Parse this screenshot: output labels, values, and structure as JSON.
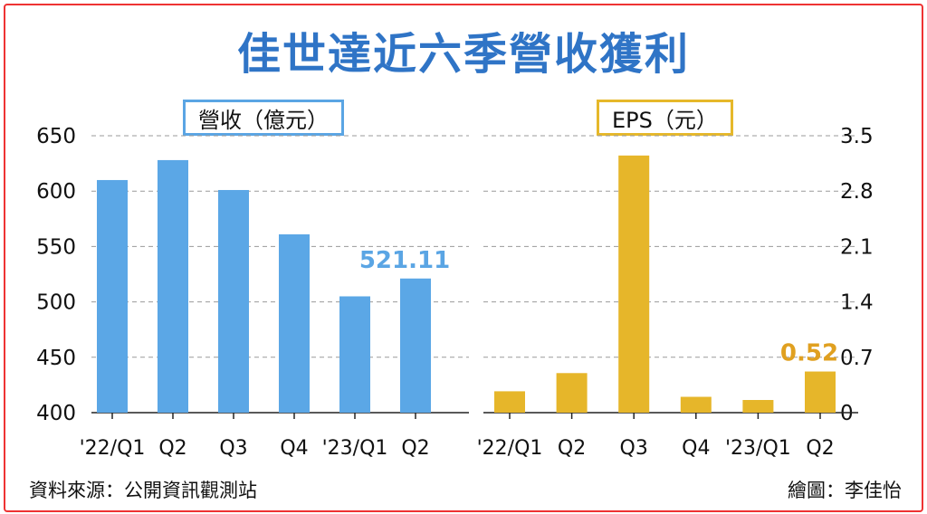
{
  "title": "佳世達近六季營收獲利",
  "source": "資料來源：公開資訊觀測站",
  "credit": "繪圖：李佳怡",
  "colors": {
    "revenue": "#5ba7e6",
    "eps": "#e6b62a",
    "revenue_label": "#5aa5e4",
    "eps_label": "#e0a020"
  },
  "chart_data": [
    {
      "type": "bar",
      "legend": "營收（億元）",
      "categories": [
        "'22/Q1",
        "Q2",
        "Q3",
        "Q4",
        "'23/Q1",
        "Q2"
      ],
      "values": [
        610,
        628,
        601,
        561,
        505,
        521.11
      ],
      "ylim": [
        400,
        650
      ],
      "yticks": [
        "650",
        "600",
        "550",
        "500",
        "450",
        "400"
      ],
      "data_labels": [
        {
          "index": 5,
          "text": "521.11"
        }
      ],
      "grid": true
    },
    {
      "type": "bar",
      "legend": "EPS（元）",
      "categories": [
        "'22/Q1",
        "Q2",
        "Q3",
        "Q4",
        "'23/Q1",
        "Q2"
      ],
      "values": [
        0.27,
        0.5,
        3.25,
        0.2,
        0.16,
        0.52
      ],
      "ylim": [
        0,
        3.5
      ],
      "yticks": [
        "3.5",
        "2.8",
        "2.1",
        "1.4",
        "0.7",
        "0"
      ],
      "data_labels": [
        {
          "index": 5,
          "text": "0.52"
        }
      ],
      "grid": true
    }
  ]
}
